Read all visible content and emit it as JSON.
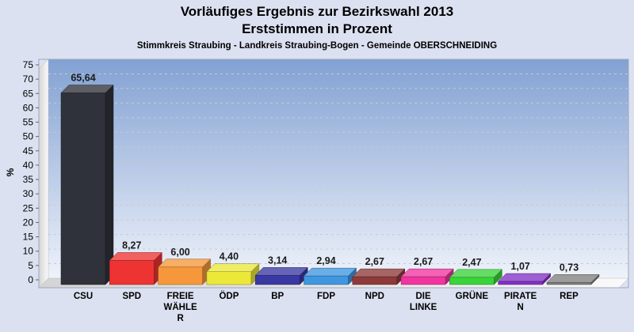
{
  "title": {
    "line1": "Vorläufiges Ergebnis zur Bezirkswahl 2013",
    "line2": "Erststimmen in Prozent",
    "subtitle": "Stimmkreis Straubing - Landkreis Straubing-Bogen - Gemeinde OBERSCHNEIDING"
  },
  "chart_data": {
    "type": "bar",
    "style": "3d-bars",
    "title": "Vorläufiges Ergebnis zur Bezirkswahl 2013 — Erststimmen in Prozent",
    "xlabel": "",
    "ylabel": "%",
    "ylim": [
      0,
      75
    ],
    "ytick_step": 5,
    "grid": "horizontal-dashed",
    "legend_position": "none",
    "categories": [
      "CSU",
      "SPD",
      "FREIE WÄHLER",
      "ÖDP",
      "BP",
      "FDP",
      "NPD",
      "DIE LINKE",
      "GRÜNE",
      "PIRATEN",
      "REP"
    ],
    "values": [
      65.64,
      8.27,
      6.0,
      4.4,
      3.14,
      2.94,
      2.67,
      2.67,
      2.47,
      1.07,
      0.73
    ],
    "value_labels": [
      "65,64",
      "8,27",
      "6,00",
      "4,40",
      "3,14",
      "2,94",
      "2,67",
      "2,67",
      "2,47",
      "1,07",
      "0,73"
    ],
    "category_label_lines": [
      [
        "CSU"
      ],
      [
        "SPD"
      ],
      [
        "FREIE",
        "WÄHLE",
        "R"
      ],
      [
        "ÖDP"
      ],
      [
        "BP"
      ],
      [
        "FDP"
      ],
      [
        "NPD"
      ],
      [
        "DIE",
        "LINKE"
      ],
      [
        "GRÜNE"
      ],
      [
        "PIRATE",
        "N"
      ],
      [
        "REP"
      ]
    ],
    "bar_colors": [
      "#2f323a",
      "#ee3333",
      "#f5973a",
      "#ebe83a",
      "#3a38a2",
      "#4097e0",
      "#8e3a3a",
      "#f135a0",
      "#39d439",
      "#8232c6",
      "#808080"
    ],
    "colors": {
      "page_bg": "#dce1f1",
      "plot_gradient_top": "#82a1d3",
      "plot_gradient_bottom": "#eef2fa",
      "wall_floor_light": "#fafafa",
      "wall_floor_dark": "#d4d4d4",
      "gridline": "#c9c9cf",
      "plot_border": "#9fa6bd",
      "text": "#000000",
      "value_label_text": "#1a1a1a"
    }
  }
}
